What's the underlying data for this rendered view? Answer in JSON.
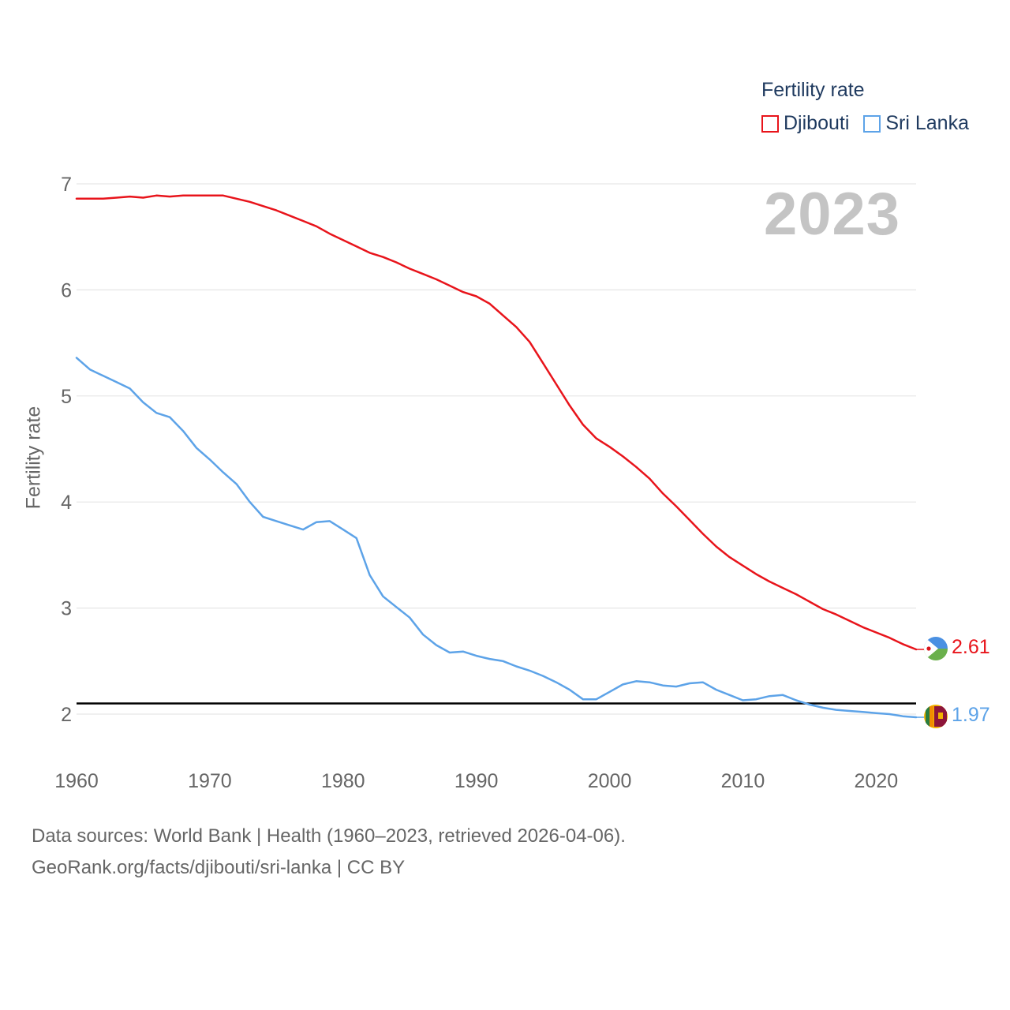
{
  "legend": {
    "title": "Fertility rate",
    "items": [
      {
        "label": "Djibouti",
        "color": "#e8141b"
      },
      {
        "label": "Sri Lanka",
        "color": "#5da3e8"
      }
    ]
  },
  "year_label": "2023",
  "end_values": {
    "djibouti": {
      "text": "2.61",
      "color": "#e8141b"
    },
    "sri_lanka": {
      "text": "1.97",
      "color": "#5da3e8"
    }
  },
  "footer": {
    "line1": "Data sources: World Bank | Health (1960–2023, retrieved 2026-04-06).",
    "line2": "GeoRank.org/facts/djibouti/sri-lanka | CC BY"
  },
  "chart_data": {
    "type": "line",
    "ylabel": "Fertility rate",
    "xlabel": "",
    "xlim": [
      1960,
      2023
    ],
    "ylim": [
      1.5,
      7.15
    ],
    "x_ticks": [
      1960,
      1970,
      1980,
      1990,
      2000,
      2010,
      2020
    ],
    "y_ticks": [
      2,
      3,
      4,
      5,
      6,
      7
    ],
    "reference_line": {
      "y": 2.1,
      "color": "#000000"
    },
    "x": [
      1960,
      1961,
      1962,
      1963,
      1964,
      1965,
      1966,
      1967,
      1968,
      1969,
      1970,
      1971,
      1972,
      1973,
      1974,
      1975,
      1976,
      1977,
      1978,
      1979,
      1980,
      1981,
      1982,
      1983,
      1984,
      1985,
      1986,
      1987,
      1988,
      1989,
      1990,
      1991,
      1992,
      1993,
      1994,
      1995,
      1996,
      1997,
      1998,
      1999,
      2000,
      2001,
      2002,
      2003,
      2004,
      2005,
      2006,
      2007,
      2008,
      2009,
      2010,
      2011,
      2012,
      2013,
      2014,
      2015,
      2016,
      2017,
      2018,
      2019,
      2020,
      2021,
      2022,
      2023
    ],
    "series": [
      {
        "name": "Djibouti",
        "color": "#e8141b",
        "values": [
          6.86,
          6.86,
          6.86,
          6.87,
          6.88,
          6.87,
          6.89,
          6.88,
          6.89,
          6.89,
          6.89,
          6.89,
          6.86,
          6.83,
          6.79,
          6.75,
          6.7,
          6.65,
          6.6,
          6.53,
          6.47,
          6.41,
          6.35,
          6.31,
          6.26,
          6.2,
          6.15,
          6.1,
          6.04,
          5.98,
          5.94,
          5.87,
          5.76,
          5.65,
          5.51,
          5.31,
          5.11,
          4.91,
          4.73,
          4.6,
          4.52,
          4.43,
          4.33,
          4.22,
          4.08,
          3.96,
          3.83,
          3.7,
          3.58,
          3.48,
          3.4,
          3.32,
          3.25,
          3.19,
          3.13,
          3.06,
          2.99,
          2.94,
          2.88,
          2.82,
          2.77,
          2.72,
          2.66,
          2.61
        ]
      },
      {
        "name": "Sri Lanka",
        "color": "#5da3e8",
        "values": [
          5.36,
          5.25,
          5.19,
          5.13,
          5.07,
          4.94,
          4.84,
          4.8,
          4.67,
          4.51,
          4.4,
          4.28,
          4.17,
          4.0,
          3.86,
          3.82,
          3.78,
          3.74,
          3.81,
          3.82,
          3.74,
          3.66,
          3.31,
          3.11,
          3.01,
          2.91,
          2.75,
          2.65,
          2.58,
          2.59,
          2.55,
          2.52,
          2.5,
          2.45,
          2.41,
          2.36,
          2.3,
          2.23,
          2.14,
          2.14,
          2.21,
          2.28,
          2.31,
          2.3,
          2.27,
          2.26,
          2.29,
          2.3,
          2.23,
          2.18,
          2.13,
          2.14,
          2.17,
          2.18,
          2.13,
          2.09,
          2.06,
          2.04,
          2.03,
          2.02,
          2.01,
          2.0,
          1.98,
          1.97
        ]
      }
    ]
  }
}
